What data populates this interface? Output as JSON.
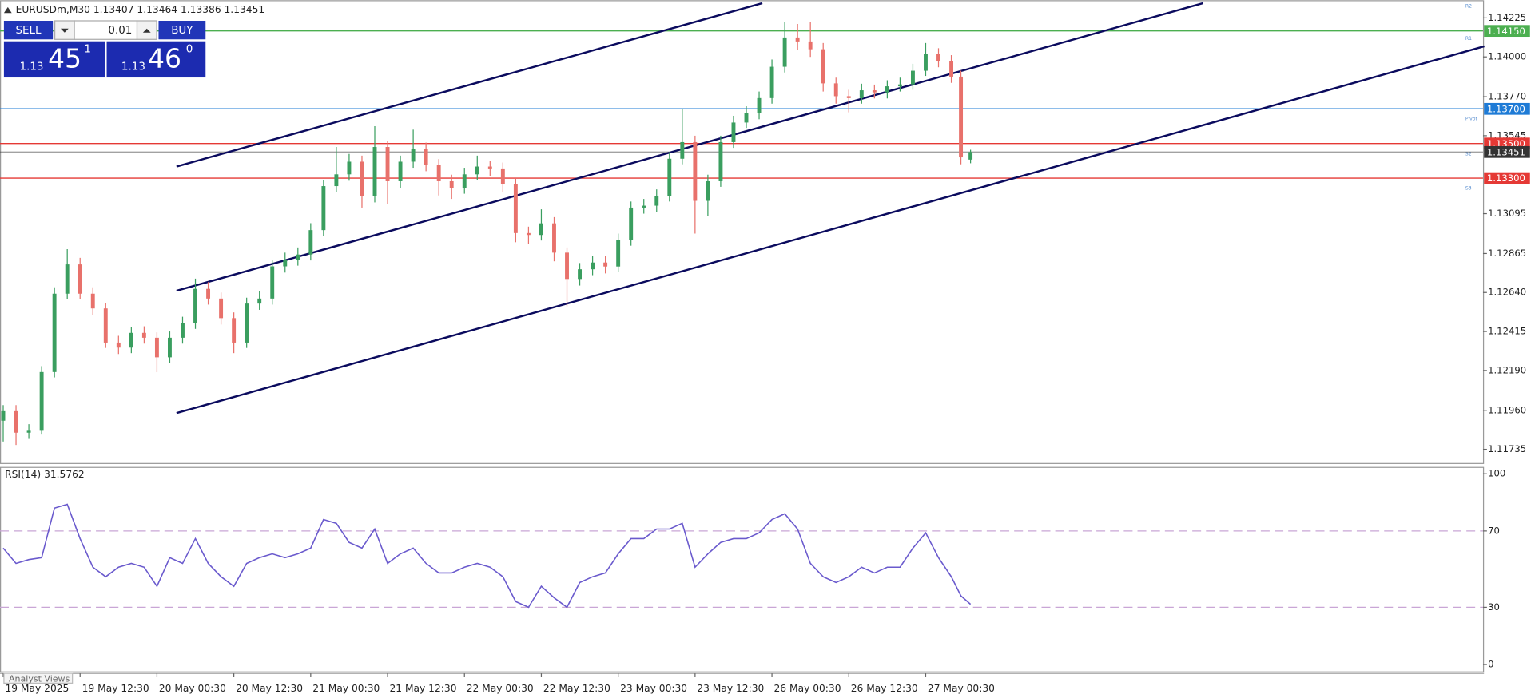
{
  "header": {
    "symbol_line": "EURUSDm,M30  1.13407 1.13464 1.13386 1.13451"
  },
  "trade_panel": {
    "sell": "SELL",
    "buy": "BUY",
    "volume": "0.01",
    "bid_big": "1.13",
    "bid_main": "45",
    "bid_frac": "1",
    "ask_big": "1.13",
    "ask_main": "46",
    "ask_frac": "0"
  },
  "chart_data": [
    {
      "type": "candlestick",
      "xlim": [
        -1,
        462
      ],
      "ylim": [
        1.11656,
        1.14327
      ],
      "xticks": [
        {
          "value": 0,
          "label": "19 May 2025"
        },
        {
          "value": 24,
          "label": "19 May 12:30"
        },
        {
          "value": 48,
          "label": "20 May 00:30"
        },
        {
          "value": 72,
          "label": "20 May 12:30"
        },
        {
          "value": 96,
          "label": "21 May 00:30"
        },
        {
          "value": 120,
          "label": "21 May 12:30"
        },
        {
          "value": 144,
          "label": "22 May 00:30"
        },
        {
          "value": 168,
          "label": "22 May 12:30"
        },
        {
          "value": 192,
          "label": "23 May 00:30"
        },
        {
          "value": 216,
          "label": "23 May 12:30"
        },
        {
          "value": 240,
          "label": "26 May 00:30"
        },
        {
          "value": 264,
          "label": "26 May 12:30"
        },
        {
          "value": 288,
          "label": "27 May 00:30"
        }
      ],
      "yticks": [
        {
          "value": 1.14225,
          "label": "1.14225"
        },
        {
          "value": 1.14,
          "label": "1.14000"
        },
        {
          "value": 1.1377,
          "label": "1.13770"
        },
        {
          "value": 1.13545,
          "label": "1.13545"
        },
        {
          "value": 1.13095,
          "label": "1.13095"
        },
        {
          "value": 1.12865,
          "label": "1.12865"
        },
        {
          "value": 1.1264,
          "label": "1.12640"
        },
        {
          "value": 1.12415,
          "label": "1.12415"
        },
        {
          "value": 1.1219,
          "label": "1.12190"
        },
        {
          "value": 1.1196,
          "label": "1.11960"
        },
        {
          "value": 1.11735,
          "label": "1.11735"
        }
      ],
      "up_color": "#3a9e5f",
      "down_color": "#e8716b",
      "x": [
        0,
        4,
        8,
        12,
        16,
        20,
        24,
        28,
        32,
        36,
        40,
        44,
        48,
        52,
        56,
        60,
        64,
        68,
        72,
        76,
        80,
        84,
        88,
        92,
        96,
        100,
        104,
        108,
        112,
        116,
        120,
        124,
        128,
        132,
        136,
        140,
        144,
        148,
        152,
        156,
        160,
        164,
        168,
        172,
        176,
        180,
        184,
        188,
        192,
        196,
        200,
        204,
        208,
        212,
        216,
        220,
        224,
        228,
        232,
        236,
        240,
        244,
        248,
        252,
        256,
        260,
        264,
        268,
        272,
        276,
        280,
        284,
        288,
        292,
        296,
        299,
        302
      ],
      "open": [
        1.119,
        1.11955,
        1.11831,
        1.11842,
        1.12181,
        1.12633,
        1.12802,
        1.12633,
        1.12548,
        1.12351,
        1.12322,
        1.12407,
        1.12379,
        1.12266,
        1.12379,
        1.12463,
        1.12661,
        1.12605,
        1.12492,
        1.12351,
        1.12576,
        1.12605,
        1.12791,
        1.1283,
        1.12859,
        1.13,
        1.13254,
        1.13322,
        1.13395,
        1.13197,
        1.1348,
        1.13282,
        1.13395,
        1.13468,
        1.13378,
        1.13282,
        1.13243,
        1.13322,
        1.13367,
        1.13356,
        1.13265,
        1.12983,
        1.12972,
        1.13039,
        1.1287,
        1.12718,
        1.12774,
        1.12813,
        1.1279,
        1.12943,
        1.1313,
        1.13141,
        1.13197,
        1.13412,
        1.13508,
        1.13169,
        1.13282,
        1.13508,
        1.13621,
        1.13677,
        1.13762,
        1.13943,
        1.14112,
        1.14089,
        1.14044,
        1.13847,
        1.13773,
        1.13762,
        1.13807,
        1.13795,
        1.1383,
        1.13841,
        1.1392,
        1.14016,
        1.13977,
        1.13886,
        1.13407
      ],
      "high": [
        1.1199,
        1.1199,
        1.1188,
        1.12215,
        1.1267,
        1.1289,
        1.1284,
        1.1267,
        1.1258,
        1.1239,
        1.1244,
        1.12445,
        1.1241,
        1.12415,
        1.125,
        1.1272,
        1.127,
        1.1264,
        1.12525,
        1.1261,
        1.1265,
        1.12825,
        1.1287,
        1.129,
        1.1304,
        1.1329,
        1.1348,
        1.1344,
        1.1343,
        1.136,
        1.13515,
        1.1343,
        1.1358,
        1.13505,
        1.1341,
        1.1332,
        1.1336,
        1.1343,
        1.134,
        1.1339,
        1.133,
        1.1302,
        1.1312,
        1.13075,
        1.129,
        1.1281,
        1.1285,
        1.1285,
        1.1298,
        1.13165,
        1.1318,
        1.13235,
        1.1345,
        1.137,
        1.13545,
        1.1332,
        1.13545,
        1.1366,
        1.13715,
        1.138,
        1.13985,
        1.142,
        1.1419,
        1.142,
        1.1408,
        1.1388,
        1.1381,
        1.13845,
        1.1384,
        1.13865,
        1.1388,
        1.1396,
        1.1408,
        1.1405,
        1.1401,
        1.1392,
        1.13464
      ],
      "low": [
        1.1178,
        1.1176,
        1.11795,
        1.1182,
        1.1215,
        1.126,
        1.126,
        1.1251,
        1.1232,
        1.12285,
        1.1229,
        1.12345,
        1.1218,
        1.12235,
        1.12345,
        1.1243,
        1.1257,
        1.12455,
        1.1229,
        1.1232,
        1.1254,
        1.1257,
        1.12755,
        1.12795,
        1.12825,
        1.12965,
        1.1322,
        1.13285,
        1.1313,
        1.1316,
        1.1315,
        1.13245,
        1.1336,
        1.1334,
        1.132,
        1.1318,
        1.1321,
        1.1329,
        1.1331,
        1.1322,
        1.1293,
        1.1292,
        1.1294,
        1.1282,
        1.1256,
        1.1268,
        1.1274,
        1.1275,
        1.1276,
        1.1291,
        1.13095,
        1.13105,
        1.13165,
        1.1338,
        1.1298,
        1.1308,
        1.1325,
        1.13475,
        1.1359,
        1.1364,
        1.1373,
        1.1391,
        1.1404,
        1.14,
        1.138,
        1.1373,
        1.1368,
        1.1373,
        1.1376,
        1.1376,
        1.138,
        1.1381,
        1.1389,
        1.1394,
        1.1385,
        1.1338,
        1.13386
      ],
      "close": [
        1.11955,
        1.11831,
        1.11842,
        1.12181,
        1.12633,
        1.12802,
        1.12633,
        1.12548,
        1.12351,
        1.12322,
        1.12407,
        1.12379,
        1.12266,
        1.12379,
        1.12463,
        1.12661,
        1.12605,
        1.12492,
        1.12351,
        1.12576,
        1.12605,
        1.12791,
        1.1283,
        1.12859,
        1.13,
        1.13254,
        1.13322,
        1.13395,
        1.13197,
        1.1348,
        1.13282,
        1.13395,
        1.13468,
        1.13378,
        1.13282,
        1.13243,
        1.13322,
        1.13367,
        1.13356,
        1.13265,
        1.12983,
        1.12972,
        1.13039,
        1.1287,
        1.12718,
        1.12774,
        1.12813,
        1.1279,
        1.12943,
        1.1313,
        1.13141,
        1.13197,
        1.13412,
        1.13508,
        1.13169,
        1.13282,
        1.13508,
        1.13621,
        1.13677,
        1.13762,
        1.13943,
        1.14112,
        1.14089,
        1.14044,
        1.13847,
        1.13773,
        1.13762,
        1.13807,
        1.13795,
        1.1383,
        1.13841,
        1.1392,
        1.14016,
        1.13977,
        1.13886,
        1.1342,
        1.13451
      ],
      "levels": [
        {
          "value": 1.1415,
          "label": "1.14150",
          "color": "#4caf50"
        },
        {
          "value": 1.137,
          "label": "1.13700",
          "color": "#1e7bd6"
        },
        {
          "value": 1.135,
          "label": "1.13500",
          "color": "#e53935"
        },
        {
          "value": 1.13451,
          "label": "1.13451",
          "color": "#333333"
        },
        {
          "value": 1.133,
          "label": "1.13300",
          "color": "#e53935"
        }
      ],
      "annotations": [
        {
          "value": 1.14299,
          "label": "R2"
        },
        {
          "value": 1.14112,
          "label": "R1"
        },
        {
          "value": 1.13649,
          "label": "Pivot"
        },
        {
          "value": 1.13446,
          "label": "S2"
        },
        {
          "value": 1.13248,
          "label": "S3"
        }
      ],
      "trendline_color": "#0b0b5e",
      "trendlines": [
        {
          "x": [
            54.1,
            237
          ],
          "y": [
            1.13367,
            1.1431
          ]
        },
        {
          "x": [
            54.1,
            374.6
          ],
          "y": [
            1.1265,
            1.1431
          ]
        },
        {
          "x": [
            54.1,
            462.4
          ],
          "y": [
            1.11944,
            1.14061
          ]
        }
      ]
    },
    {
      "type": "line",
      "title": "RSI(14) 31.5762",
      "color": "#6a5acd",
      "xlim": [
        -1,
        462
      ],
      "ylim": [
        -3.6,
        103.6
      ],
      "yticks": [
        0,
        30,
        70,
        100
      ],
      "levels": [
        30,
        70
      ],
      "level_color": "#c9a6d6",
      "x": [
        0,
        4,
        8,
        12,
        16,
        20,
        24,
        28,
        32,
        36,
        40,
        44,
        48,
        52,
        56,
        60,
        64,
        68,
        72,
        76,
        80,
        84,
        88,
        92,
        96,
        100,
        104,
        108,
        112,
        116,
        120,
        124,
        128,
        132,
        136,
        140,
        144,
        148,
        152,
        156,
        160,
        164,
        168,
        172,
        176,
        180,
        184,
        188,
        192,
        196,
        200,
        204,
        208,
        212,
        216,
        220,
        224,
        228,
        232,
        236,
        240,
        244,
        248,
        252,
        256,
        260,
        264,
        268,
        272,
        276,
        280,
        284,
        288,
        292,
        296,
        299,
        302
      ],
      "values": [
        61,
        53,
        55,
        56,
        82,
        84,
        66,
        51,
        46,
        51,
        53,
        51,
        41,
        56,
        53,
        66,
        53,
        46,
        41,
        53,
        56,
        58,
        56,
        58,
        61,
        76,
        74,
        64,
        61,
        71,
        53,
        58,
        61,
        53,
        48,
        48,
        51,
        53,
        51,
        46,
        33,
        30,
        41,
        35,
        30,
        43,
        46,
        48,
        58,
        66,
        66,
        71,
        71,
        74,
        51,
        58,
        64,
        66,
        66,
        69,
        76,
        79,
        71,
        53,
        46,
        43,
        46,
        51,
        48,
        51,
        51,
        61,
        69,
        56,
        46,
        36,
        31.5762
      ]
    }
  ],
  "footer": {
    "tab": "Analyst Views"
  }
}
